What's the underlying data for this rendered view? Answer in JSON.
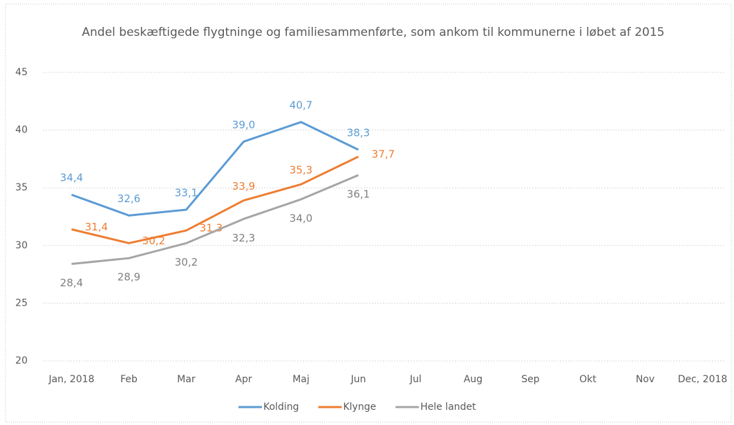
{
  "chart_data": {
    "type": "line",
    "title": "Andel beskæftigede flygtninge og familiesammenførte, som ankom til kommunerne i løbet af 2015",
    "categories": [
      "Jan, 2018",
      "Feb",
      "Mar",
      "Apr",
      "Maj",
      "Jun",
      "Jul",
      "Aug",
      "Sep",
      "Okt",
      "Nov",
      "Dec, 2018"
    ],
    "series": [
      {
        "name": "Kolding",
        "color": "#5b9bd5",
        "values": [
          34.4,
          32.6,
          33.1,
          39.0,
          40.7,
          38.3,
          null,
          null,
          null,
          null,
          null,
          null
        ],
        "value_labels": [
          "34,4",
          "32,6",
          "33,1",
          "39,0",
          "40,7",
          "38,3",
          null,
          null,
          null,
          null,
          null,
          null
        ]
      },
      {
        "name": "Klynge",
        "color": "#ed7d31",
        "values": [
          31.4,
          30.2,
          31.3,
          33.9,
          35.3,
          37.7,
          null,
          null,
          null,
          null,
          null,
          null
        ],
        "value_labels": [
          "31,4",
          "30,2",
          "31,3",
          "33,9",
          "35,3",
          "37,7",
          null,
          null,
          null,
          null,
          null,
          null
        ]
      },
      {
        "name": "Hele landet",
        "color": "#a5a5a5",
        "values": [
          28.4,
          28.9,
          30.2,
          32.3,
          34.0,
          36.1,
          null,
          null,
          null,
          null,
          null,
          null
        ],
        "value_labels": [
          "28,4",
          "28,9",
          "30,2",
          "32,3",
          "34,0",
          "36,1",
          null,
          null,
          null,
          null,
          null,
          null
        ]
      }
    ],
    "ylim": [
      20,
      45
    ],
    "yticks": [
      20,
      25,
      30,
      35,
      40,
      45
    ],
    "grid": true,
    "legend": "bottom"
  }
}
